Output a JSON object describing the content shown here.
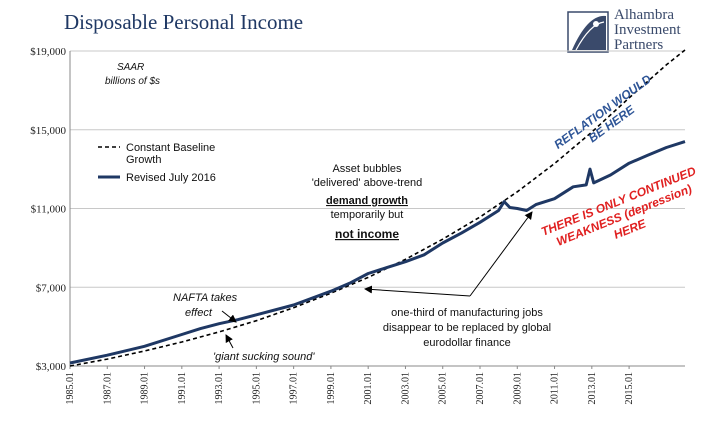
{
  "title": "Disposable Personal Income",
  "logo": {
    "lines": [
      "Alhambra",
      "Investment",
      "Partners"
    ],
    "icon": "alhambra-logo-icon"
  },
  "chart_data": {
    "type": "line",
    "units_text": [
      "SAAR",
      "billions of $s"
    ],
    "ylim": [
      3000,
      19000
    ],
    "yticks": [
      3000,
      7000,
      11000,
      15000,
      19000
    ],
    "ytick_labels": [
      "$3,000",
      "$7,000",
      "$11,000",
      "$15,000",
      "$19,000"
    ],
    "xlim": [
      1985.0,
      2018.0
    ],
    "xticks": [
      1985.0,
      1987.0,
      1989.0,
      1991.0,
      1993.0,
      1995.0,
      1997.0,
      1999.0,
      2001.0,
      2003.0,
      2005.0,
      2007.0,
      2009.0,
      2011.0,
      2013.0,
      2015.0
    ],
    "xtick_labels": [
      "1985.01",
      "1987.01",
      "1989.01",
      "1991.01",
      "1993.01",
      "1995.01",
      "1997.01",
      "1999.01",
      "2001.01",
      "2003.01",
      "2005.01",
      "2007.01",
      "2009.01",
      "2011.01",
      "2013.01",
      "2015.01"
    ],
    "grid": true,
    "legend_placement": "upper-left",
    "series": [
      {
        "name": "Constant Baseline Growth",
        "style": "dashed",
        "color": "#000000",
        "x": [
          1985,
          1987,
          1989,
          1991,
          1993,
          1995,
          1997,
          1999,
          2001,
          2003,
          2005,
          2007,
          2009,
          2011,
          2013,
          2015,
          2017,
          2018
        ],
        "y": [
          3000,
          3350,
          3760,
          4220,
          4730,
          5300,
          5960,
          6700,
          7500,
          8420,
          9440,
          10570,
          11850,
          13280,
          14880,
          16620,
          18300,
          19050
        ]
      },
      {
        "name": "Revised July 2016",
        "style": "solid",
        "color": "#1f3864",
        "x": [
          1985,
          1987,
          1989,
          1991,
          1992,
          1993,
          1994,
          1995,
          1997,
          1999,
          2000,
          2001,
          2002,
          2003,
          2004,
          2005,
          2006,
          2007,
          2008,
          2008.3,
          2008.6,
          2009,
          2009.5,
          2010,
          2011,
          2012,
          2012.7,
          2012.9,
          2013.1,
          2014,
          2015,
          2016,
          2017,
          2018
        ],
        "y": [
          3150,
          3550,
          4000,
          4600,
          4900,
          5150,
          5350,
          5600,
          6100,
          6800,
          7200,
          7700,
          8000,
          8300,
          8650,
          9250,
          9750,
          10300,
          10900,
          11350,
          11050,
          11000,
          10900,
          11200,
          11500,
          12100,
          12200,
          13000,
          12300,
          12700,
          13300,
          13700,
          14100,
          14400
        ]
      }
    ],
    "annotations": {
      "bubbles": [
        "Asset bubbles",
        "'delivered' above-trend",
        "demand growth",
        "temporarily but",
        "not income"
      ],
      "nafta": [
        "NAFTA takes",
        "effect"
      ],
      "giant": "'giant sucking sound'",
      "jobs": [
        "one-third of manufacturing jobs",
        "disappear to be replaced by global",
        "eurodollar finance"
      ],
      "reflation": [
        "REFLATION WOULD",
        "BE HERE"
      ],
      "weakness": [
        "THERE IS ONLY CONTINUED",
        "WEAKNESS (depression)",
        "HERE"
      ]
    }
  }
}
